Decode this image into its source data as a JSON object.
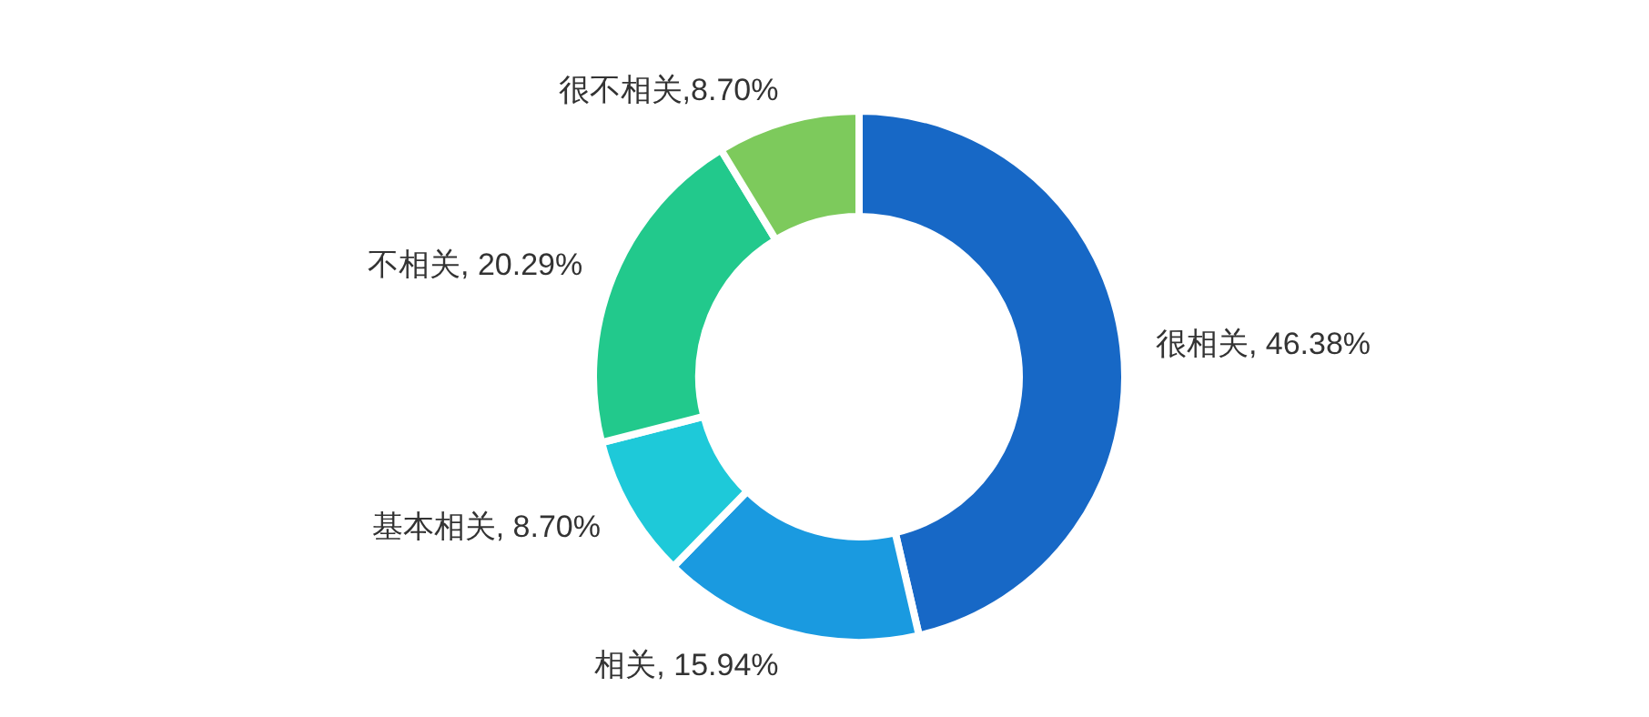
{
  "chart_data": {
    "type": "donut",
    "categories": [
      "很相关",
      "相关",
      "基本相关",
      "不相关",
      "很不相关"
    ],
    "values": [
      46.38,
      15.94,
      8.7,
      20.29,
      8.7
    ],
    "value_labels": [
      ", 46.38%",
      ", 15.94%",
      ", 8.70%",
      ", 20.29%",
      ",8.70%"
    ],
    "colors": [
      "#1768c6",
      "#1a9ae0",
      "#1ec9d9",
      "#22c98c",
      "#7dca5c"
    ],
    "legend": false
  }
}
